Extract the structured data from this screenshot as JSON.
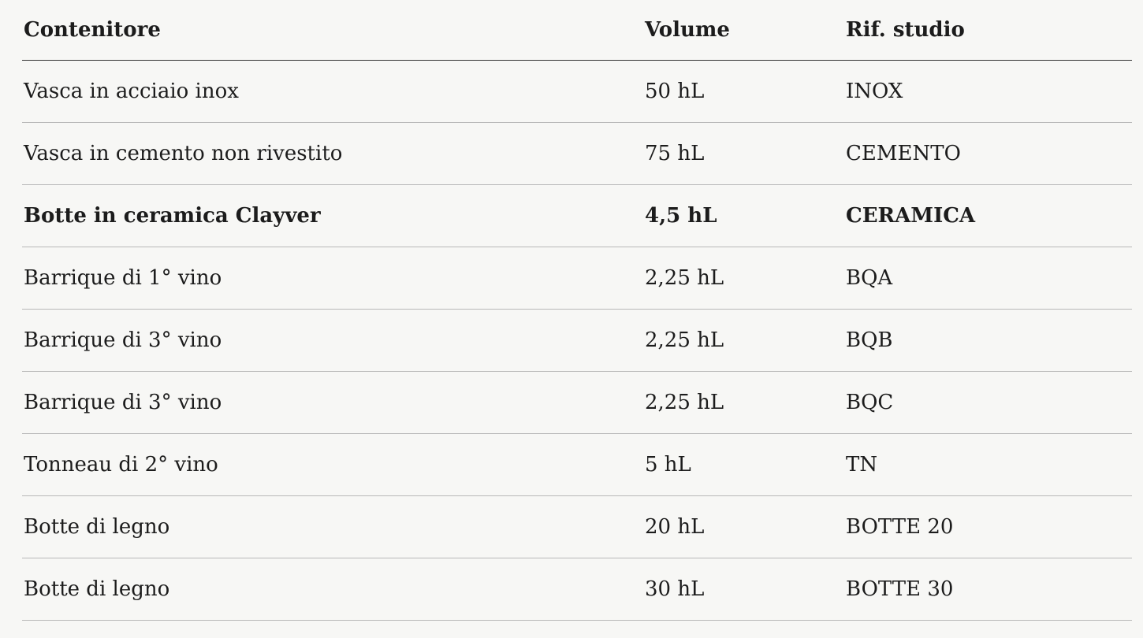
{
  "table": {
    "header": [
      "Contenitore",
      "Volume",
      "Rif. studio"
    ],
    "rows": [
      [
        "Vasca in acciaio inox",
        "50 hL",
        "INOX"
      ],
      [
        "Vasca in cemento non rivestito",
        "75 hL",
        "CEMENTO"
      ],
      [
        "Botte in ceramica Clayver",
        "4,5 hL",
        "CERAMICA"
      ],
      [
        "Barrique di 1° vino",
        "2,25 hL",
        "BQA"
      ],
      [
        "Barrique di 3° vino",
        "2,25 hL",
        "BQB"
      ],
      [
        "Barrique di 3° vino",
        "2,25 hL",
        "BQC"
      ],
      [
        "Tonneau di 2° vino",
        "5 hL",
        "TN"
      ],
      [
        "Botte di legno",
        "20 hL",
        "BOTTE 20"
      ],
      [
        "Botte di legno",
        "30 hL",
        "BOTTE 30"
      ]
    ]
  }
}
